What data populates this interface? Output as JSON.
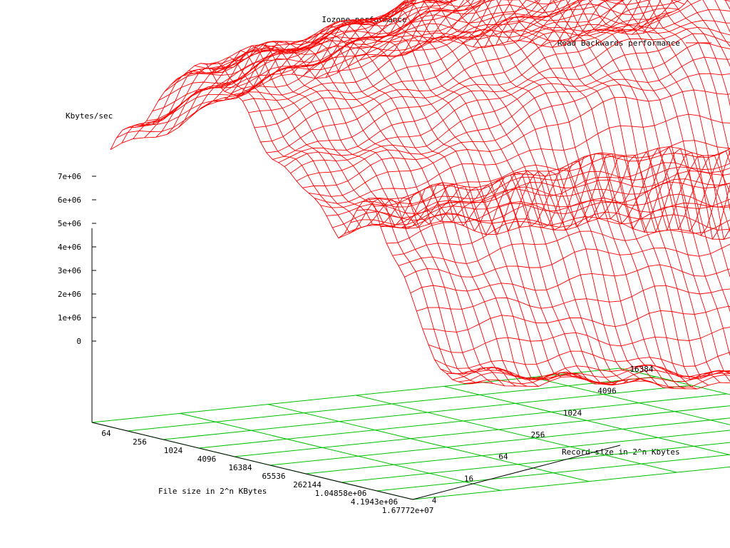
{
  "chart_data": {
    "type": "surface",
    "title": "Iozone performance",
    "legend": {
      "label": "Read Backwards performance",
      "placement": "top-right"
    },
    "xlabel": "File size in 2^n KBytes",
    "ylabel": "Record size in 2^n Kbytes",
    "zlabel": "Kbytes/sec",
    "x_ticks": [
      "64",
      "256",
      "1024",
      "4096",
      "16384",
      "65536",
      "262144",
      "1.04858e+06",
      "4.1943e+06",
      "1.67772e+07"
    ],
    "y_ticks": [
      "4",
      "16",
      "64",
      "256",
      "1024",
      "4096",
      "16384"
    ],
    "z_ticks": [
      "0",
      "1e+06",
      "2e+06",
      "3e+06",
      "4e+06",
      "5e+06",
      "6e+06",
      "7e+06"
    ],
    "xlim_exp": [
      6,
      24
    ],
    "ylim_exp": [
      2,
      14
    ],
    "zlim": [
      0,
      7000000
    ],
    "surface_rows_by_record_exp": {
      "2": [
        2600000,
        3400000,
        4400000,
        4900000,
        4200000,
        3400000,
        2900000,
        2300000,
        3100000,
        1700000,
        100000,
        50000
      ],
      "5": [
        3800000,
        4600000,
        5300000,
        5600000,
        5100000,
        4300000,
        3600000,
        2400000,
        3800000,
        2100000,
        150000,
        80000
      ],
      "8": [
        4600000,
        5400000,
        6300000,
        6500000,
        6000000,
        5400000,
        4700000,
        2400000,
        4300000,
        2400000,
        200000,
        100000
      ],
      "11": [
        4900000,
        5800000,
        6600000,
        7000000,
        6700000,
        6200000,
        5300000,
        2300000,
        4600000,
        2600000,
        250000,
        150000
      ],
      "14": [
        5100000,
        6000000,
        6900000,
        7200000,
        7000000,
        6500000,
        5600000,
        2100000,
        4800000,
        2800000,
        300000,
        200000
      ]
    },
    "grid": true,
    "colors": {
      "surface": "#ff0000",
      "base_grid": "#00c000",
      "axes": "#000000",
      "text": "#000000"
    }
  }
}
